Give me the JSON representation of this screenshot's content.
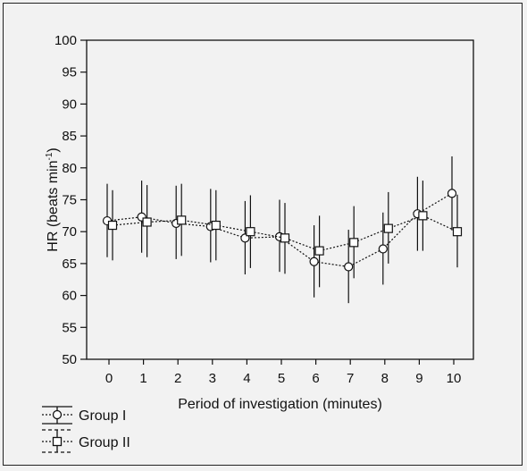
{
  "chart_data": {
    "type": "line",
    "title": "",
    "xlabel": "Period of investigation (minutes)",
    "ylabel": "HR (beats min",
    "ylabel_superscript": "-1",
    "ylabel_close": ")",
    "categories": [
      0,
      1,
      2,
      3,
      4,
      5,
      6,
      7,
      8,
      9,
      10
    ],
    "ylim": [
      50,
      100
    ],
    "yticks": [
      50,
      55,
      60,
      65,
      70,
      75,
      80,
      85,
      90,
      95,
      100
    ],
    "grid": false,
    "legend_position": "bottom-left",
    "series": [
      {
        "name": "Group I",
        "marker": "circle",
        "line_style": "dotted",
        "values": [
          71.7,
          72.3,
          71.3,
          70.8,
          69.0,
          69.2,
          65.3,
          64.5,
          67.3,
          72.8,
          76.0
        ],
        "err_low": [
          66.0,
          66.7,
          65.7,
          65.2,
          63.3,
          63.7,
          59.7,
          58.8,
          61.7,
          67.0,
          70.2
        ],
        "err_high": [
          77.5,
          78.0,
          77.2,
          76.7,
          74.8,
          75.0,
          71.0,
          70.3,
          73.0,
          78.6,
          81.8
        ]
      },
      {
        "name": "Group II",
        "marker": "square",
        "line_style": "dotted",
        "values": [
          71.0,
          71.5,
          71.8,
          71.0,
          70.0,
          69.0,
          67.0,
          68.3,
          70.5,
          72.5,
          70.0
        ],
        "err_low": [
          65.5,
          66.0,
          66.2,
          65.5,
          64.3,
          63.4,
          61.3,
          62.7,
          65.0,
          67.0,
          64.4
        ],
        "err_high": [
          76.5,
          77.3,
          77.5,
          76.5,
          75.7,
          74.5,
          72.5,
          74.0,
          76.2,
          78.0,
          75.8
        ]
      }
    ]
  },
  "colors": {
    "background": "#f2f2f2",
    "ink": "#111111",
    "marker_fill": "#ffffff"
  }
}
